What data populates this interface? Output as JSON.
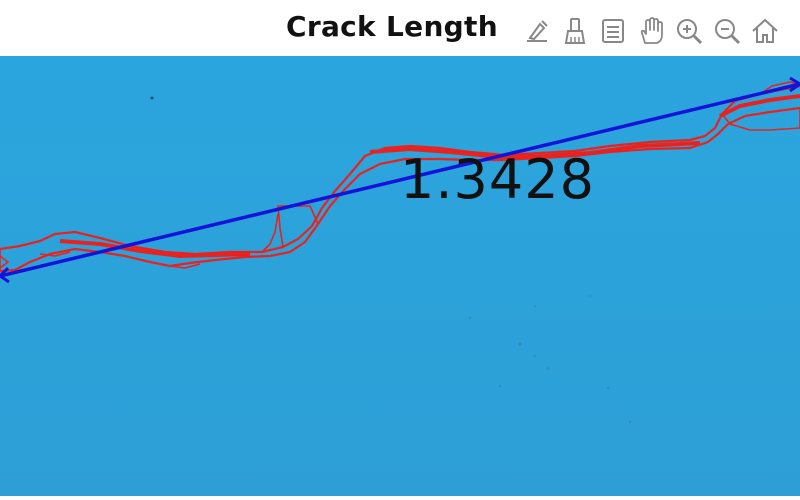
{
  "figure": {
    "title": "Crack Length",
    "measurement_label": "1.3428"
  },
  "toolbar": {
    "tools": [
      {
        "name": "edit-plot-icon"
      },
      {
        "name": "data-brush-icon"
      },
      {
        "name": "insert-legend-icon"
      },
      {
        "name": "pan-hand-icon"
      },
      {
        "name": "zoom-in-icon"
      },
      {
        "name": "zoom-out-icon"
      },
      {
        "name": "home-icon"
      }
    ]
  },
  "colors": {
    "background": "#2aa3dc",
    "crack_outline": "#e8231f",
    "fit_line": "#1414d8",
    "text": "#111111"
  }
}
